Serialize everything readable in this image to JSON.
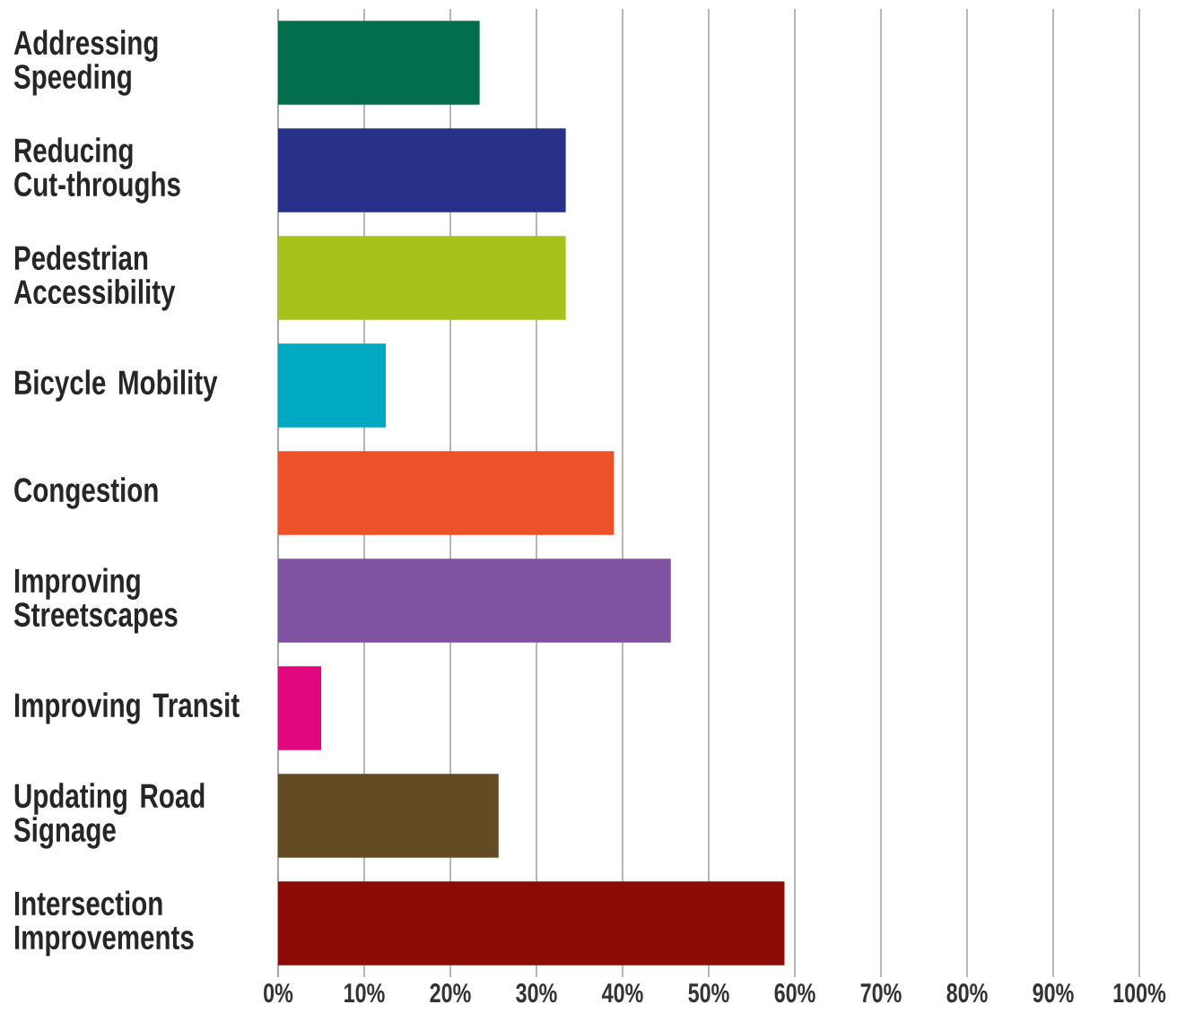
{
  "chart_data": {
    "type": "bar",
    "orientation": "horizontal",
    "categories": [
      "Addressing Speeding",
      "Reducing Cut-throughs",
      "Pedestrian Accessibility",
      "Bicycle Mobility",
      "Congestion",
      "Improving Streetscapes",
      "Improving Transit",
      "Updating Road Signage",
      "Intersection Improvements"
    ],
    "values": [
      23.4,
      33.4,
      33.4,
      12.5,
      39.0,
      45.6,
      5.0,
      25.6,
      58.8
    ],
    "colors": [
      "#036e4e",
      "#27318a",
      "#a8c21c",
      "#00a9c2",
      "#ec512a",
      "#7f52a1",
      "#e0077f",
      "#634b24",
      "#8b0c04"
    ],
    "xlim": [
      0,
      100
    ],
    "xticks": [
      {
        "value": 0,
        "label": "0%"
      },
      {
        "value": 10,
        "label": "10%"
      },
      {
        "value": 20,
        "label": "20%"
      },
      {
        "value": 30,
        "label": "30%"
      },
      {
        "value": 40,
        "label": "40%"
      },
      {
        "value": 50,
        "label": "50%"
      },
      {
        "value": 60,
        "label": "60%"
      },
      {
        "value": 70,
        "label": "70%"
      },
      {
        "value": 80,
        "label": "80%"
      },
      {
        "value": 90,
        "label": "90%"
      },
      {
        "value": 100,
        "label": "100%"
      }
    ],
    "grid": "x"
  }
}
